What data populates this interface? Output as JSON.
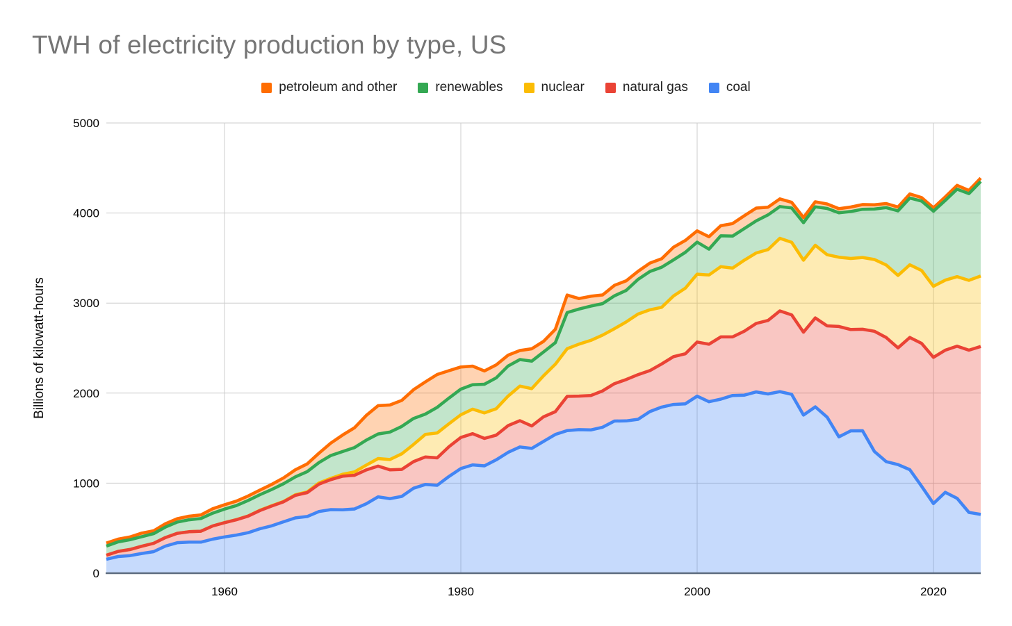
{
  "title": "TWH of electricity production by type, US",
  "legend": {
    "position": "top",
    "items": [
      {
        "label": "petroleum and other",
        "color": "#FF6D01"
      },
      {
        "label": "renewables",
        "color": "#34A853"
      },
      {
        "label": "nuclear",
        "color": "#FBBC04"
      },
      {
        "label": "natural gas",
        "color": "#EA4335"
      },
      {
        "label": "coal",
        "color": "#4285F4"
      }
    ]
  },
  "y_axis": {
    "title": "Billions of kilowatt-hours",
    "ticks": [
      "0",
      "1000",
      "2000",
      "3000",
      "4000",
      "5000"
    ],
    "range": [
      0,
      5000
    ]
  },
  "x_axis": {
    "ticks": [
      "1960",
      "1980",
      "2000",
      "2020"
    ],
    "range": [
      1950,
      2024
    ]
  },
  "style": {
    "fill_opacity": 0.3,
    "line_width": 4.5,
    "gridline_color": "#cccccc",
    "baseline_color": "#5d6b7e",
    "tick_label_color": "#000000",
    "title_color": "#757575"
  },
  "chart_data": {
    "type": "area",
    "stacked": true,
    "title": "TWH of electricity production by type, US",
    "ylabel": "Billions of kilowatt-hours",
    "xlabel": "",
    "unit": "billion kilowatt-hours (TWh)",
    "ylim": [
      0,
      5000
    ],
    "grid": true,
    "legend_position": "top",
    "x": [
      1950,
      1951,
      1952,
      1953,
      1954,
      1955,
      1956,
      1957,
      1958,
      1959,
      1960,
      1961,
      1962,
      1963,
      1964,
      1965,
      1966,
      1967,
      1968,
      1969,
      1970,
      1971,
      1972,
      1973,
      1974,
      1975,
      1976,
      1977,
      1978,
      1979,
      1980,
      1981,
      1982,
      1983,
      1984,
      1985,
      1986,
      1987,
      1988,
      1989,
      1990,
      1991,
      1992,
      1993,
      1994,
      1995,
      1996,
      1997,
      1998,
      1999,
      2000,
      2001,
      2002,
      2003,
      2004,
      2005,
      2006,
      2007,
      2008,
      2009,
      2010,
      2011,
      2012,
      2013,
      2014,
      2015,
      2016,
      2017,
      2018,
      2019,
      2020,
      2021,
      2022,
      2023,
      2024
    ],
    "series": [
      {
        "name": "coal",
        "color": "#4285F4",
        "values": [
          155,
          185,
          195,
          219,
          239,
          301,
          339,
          346,
          345,
          378,
          403,
          423,
          450,
          494,
          526,
          571,
          614,
          630,
          685,
          706,
          704,
          713,
          771,
          848,
          828,
          853,
          944,
          985,
          976,
          1075,
          1162,
          1203,
          1192,
          1259,
          1342,
          1402,
          1386,
          1464,
          1541,
          1584,
          1594,
          1591,
          1621,
          1690,
          1691,
          1709,
          1795,
          1845,
          1874,
          1881,
          1966,
          1904,
          1933,
          1974,
          1978,
          2013,
          1991,
          2016,
          1986,
          1756,
          1847,
          1733,
          1514,
          1581,
          1582,
          1352,
          1239,
          1206,
          1150,
          965,
          773,
          898,
          832,
          675,
          653
        ]
      },
      {
        "name": "natural gas",
        "color": "#EA4335",
        "values": [
          45,
          57,
          68,
          80,
          93,
          95,
          104,
          115,
          121,
          147,
          158,
          170,
          184,
          202,
          220,
          222,
          251,
          265,
          304,
          333,
          373,
          374,
          376,
          341,
          320,
          300,
          295,
          306,
          305,
          330,
          346,
          346,
          305,
          274,
          297,
          292,
          249,
          273,
          253,
          380,
          373,
          382,
          404,
          415,
          460,
          496,
          455,
          479,
          531,
          556,
          601,
          639,
          691,
          650,
          710,
          761,
          816,
          897,
          883,
          921,
          988,
          1014,
          1226,
          1125,
          1127,
          1335,
          1378,
          1296,
          1468,
          1587,
          1624,
          1579,
          1689,
          1802,
          1865
        ]
      },
      {
        "name": "nuclear",
        "color": "#FBBC04",
        "values": [
          0,
          0,
          0,
          0,
          0,
          0,
          0,
          0,
          0,
          0,
          1,
          2,
          2,
          3,
          3,
          4,
          6,
          8,
          13,
          14,
          22,
          38,
          54,
          84,
          114,
          173,
          191,
          251,
          276,
          255,
          251,
          273,
          283,
          294,
          328,
          384,
          414,
          455,
          527,
          529,
          577,
          613,
          619,
          610,
          640,
          673,
          675,
          629,
          674,
          728,
          754,
          769,
          780,
          764,
          789,
          782,
          787,
          806,
          806,
          799,
          807,
          790,
          769,
          789,
          797,
          797,
          806,
          805,
          807,
          809,
          790,
          778,
          772,
          775,
          782
        ]
      },
      {
        "name": "renewables",
        "color": "#34A853",
        "values": [
          101,
          106,
          109,
          107,
          107,
          116,
          125,
          132,
          141,
          142,
          150,
          156,
          172,
          173,
          181,
          197,
          199,
          225,
          227,
          254,
          252,
          270,
          277,
          273,
          305,
          304,
          288,
          225,
          285,
          285,
          285,
          271,
          319,
          343,
          334,
          295,
          306,
          265,
          239,
          401,
          390,
          380,
          350,
          365,
          350,
          385,
          425,
          445,
          400,
          398,
          356,
          287,
          343,
          356,
          351,
          357,
          385,
          353,
          381,
          417,
          427,
          514,
          494,
          522,
          536,
          560,
          637,
          717,
          742,
          772,
          834,
          885,
          972,
          963,
          1050
        ]
      },
      {
        "name": "petroleum and other",
        "color": "#FF6D01",
        "values": [
          34,
          30,
          30,
          39,
          32,
          37,
          37,
          40,
          40,
          48,
          48,
          49,
          49,
          51,
          57,
          65,
          79,
          86,
          104,
          138,
          184,
          220,
          274,
          314,
          301,
          289,
          320,
          358,
          365,
          304,
          246,
          206,
          147,
          144,
          120,
          100,
          137,
          118,
          149,
          195,
          116,
          110,
          96,
          117,
          107,
          90,
          94,
          94,
          141,
          132,
          125,
          138,
          112,
          139,
          143,
          142,
          86,
          85,
          63,
          57,
          56,
          49,
          45,
          49,
          52,
          48,
          45,
          42,
          45,
          38,
          37,
          39,
          42,
          36,
          38
        ]
      }
    ]
  }
}
